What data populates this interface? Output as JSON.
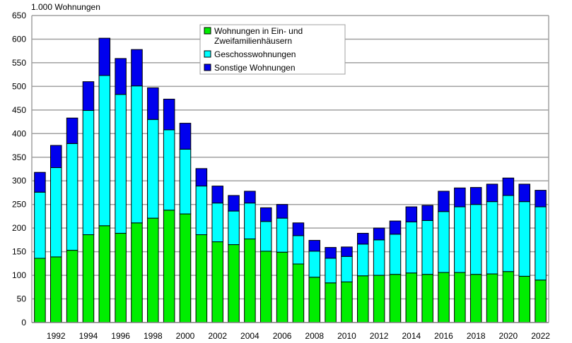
{
  "chart_data": {
    "type": "bar",
    "stacked": true,
    "title": "",
    "ylabel": "1.000 Wohnungen",
    "xlabel": "",
    "ylim": [
      0,
      650
    ],
    "yticks": [
      0,
      50,
      100,
      150,
      200,
      250,
      300,
      350,
      400,
      450,
      500,
      550,
      600,
      650
    ],
    "grid": true,
    "legend_position": "top-center",
    "categories": [
      1991,
      1992,
      1993,
      1994,
      1995,
      1996,
      1997,
      1998,
      1999,
      2000,
      2001,
      2002,
      2003,
      2004,
      2005,
      2006,
      2007,
      2008,
      2009,
      2010,
      2011,
      2012,
      2013,
      2014,
      2015,
      2016,
      2017,
      2018,
      2019,
      2020,
      2021,
      2022
    ],
    "xtick_labels": [
      "1992",
      "1994",
      "1996",
      "1998",
      "2000",
      "2002",
      "2004",
      "2006",
      "2008",
      "2010",
      "2012",
      "2014",
      "2016",
      "2018",
      "2020",
      "2022"
    ],
    "series": [
      {
        "name": "Wohnungen in Ein- und Zweifamilienhäusern",
        "color": "#00ee00",
        "values": [
          136,
          139,
          153,
          186,
          205,
          189,
          211,
          221,
          238,
          230,
          186,
          171,
          165,
          177,
          151,
          149,
          124,
          96,
          84,
          86,
          99,
          100,
          102,
          105,
          102,
          106,
          106,
          102,
          103,
          108,
          98,
          90
        ]
      },
      {
        "name": "Geschosswohnungen",
        "color": "#00ffff",
        "values": [
          140,
          189,
          226,
          263,
          318,
          294,
          290,
          209,
          170,
          137,
          103,
          82,
          71,
          76,
          63,
          72,
          60,
          55,
          52,
          54,
          67,
          75,
          85,
          108,
          114,
          129,
          139,
          148,
          153,
          161,
          158,
          155
        ]
      },
      {
        "name": "Sonstige Wohnungen",
        "color": "#0000ee",
        "values": [
          42,
          47,
          54,
          61,
          79,
          76,
          77,
          67,
          65,
          55,
          37,
          36,
          33,
          25,
          29,
          29,
          27,
          23,
          23,
          20,
          23,
          25,
          28,
          32,
          32,
          43,
          40,
          36,
          37,
          37,
          37,
          35
        ]
      }
    ],
    "legend_lines": [
      [
        "Wohnungen in Ein- und",
        "Zweifamilienhäusern"
      ],
      [
        "Geschosswohnungen"
      ],
      [
        "Sonstige Wohnungen"
      ]
    ]
  }
}
